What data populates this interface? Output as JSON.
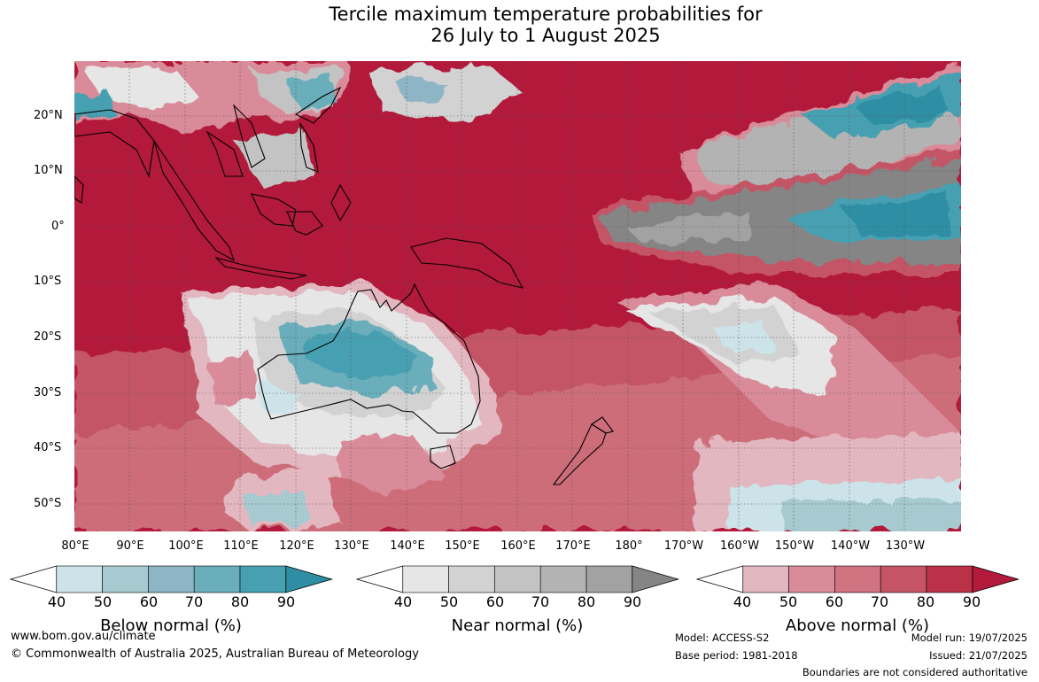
{
  "title_line1": "Tercile maximum temperature probabilities for",
  "title_line2": "26 July to 1 August 2025",
  "lat_labels": [
    "20°N",
    "10°N",
    "0°",
    "10°S",
    "20°S",
    "30°S",
    "40°S",
    "50°S"
  ],
  "lon_labels": [
    "80°E",
    "90°E",
    "100°E",
    "110°E",
    "120°E",
    "130°E",
    "140°E",
    "150°E",
    "160°E",
    "170°E",
    "180°",
    "170°W",
    "160°W",
    "150°W",
    "140°W",
    "130°W"
  ],
  "colorbars": [
    {
      "title": "Below normal (%)",
      "ticks": [
        "40",
        "50",
        "60",
        "70",
        "80",
        "90"
      ],
      "colors": [
        "#ffffff",
        "#cde3ea",
        "#a6cad0",
        "#8db5c5",
        "#6aaebb",
        "#46a0b1",
        "#2f8ea3"
      ]
    },
    {
      "title": "Near normal (%)",
      "ticks": [
        "40",
        "50",
        "60",
        "70",
        "80",
        "90"
      ],
      "colors": [
        "#ffffff",
        "#e6e6e6",
        "#d2d2d2",
        "#c3c3c3",
        "#b3b3b3",
        "#a2a2a2",
        "#858585"
      ]
    },
    {
      "title": "Above normal (%)",
      "ticks": [
        "40",
        "50",
        "60",
        "70",
        "80",
        "90"
      ],
      "colors": [
        "#ffffff",
        "#e3b7c0",
        "#d98b99",
        "#cf7380",
        "#c45466",
        "#bb3248",
        "#b2193a"
      ]
    }
  ],
  "footer": {
    "website": "www.bom.gov.au/climate",
    "copyright": "© Commonwealth of Australia 2025, Australian Bureau of Meteorology",
    "model": "Model: ACCESS-S2",
    "base_period": "Base period: 1981-2018",
    "model_run": "Model run: 19/07/2025",
    "issued": "Issued: 21/07/2025",
    "disclaimer": "Boundaries are not considered authoritative"
  }
}
